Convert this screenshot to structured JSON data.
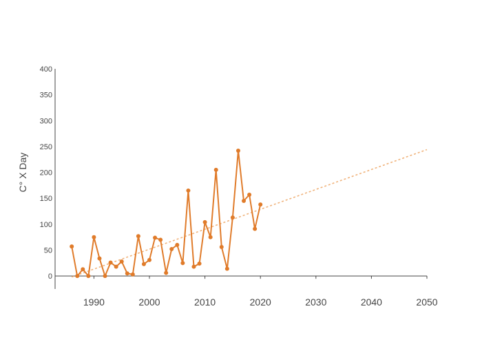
{
  "chart_data": {
    "type": "line",
    "xlabel": "",
    "ylabel": "C° X Day",
    "xlim": [
      1983,
      2050
    ],
    "ylim": [
      -25,
      400
    ],
    "x_ticks": [
      1990,
      2000,
      2010,
      2020,
      2030,
      2040,
      2050
    ],
    "y_ticks": [
      0,
      50,
      100,
      150,
      200,
      250,
      300,
      350,
      400
    ],
    "grid": false,
    "colors": {
      "series": "#e07b2a",
      "trend": "#f0b27a",
      "axis": "#444444"
    },
    "series": [
      {
        "x": [
          1986,
          1987,
          1988,
          1989,
          1990,
          1991,
          1992,
          1993,
          1994,
          1995,
          1996,
          1997,
          1998,
          1999,
          2000,
          2001,
          2002,
          2003,
          2004,
          2005,
          2006,
          2007,
          2008,
          2009,
          2010,
          2011,
          2012,
          2013,
          2014,
          2015,
          2016,
          2017,
          2018,
          2019,
          2020
        ],
        "values": [
          57,
          0,
          13,
          0,
          75,
          34,
          0,
          26,
          18,
          28,
          5,
          3,
          77,
          23,
          31,
          74,
          70,
          6,
          52,
          60,
          25,
          165,
          18,
          24,
          104,
          75,
          205,
          56,
          14,
          113,
          242,
          145,
          157,
          91,
          138
        ]
      }
    ],
    "trendline": {
      "style": "dotted",
      "x": [
        1986,
        2050
      ],
      "values": [
        -2,
        244
      ]
    }
  }
}
